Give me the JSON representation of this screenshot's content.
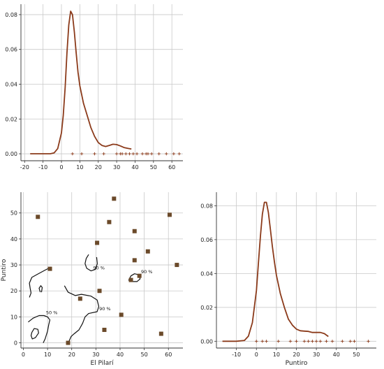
{
  "chart_data": [
    {
      "panel": "top-left",
      "type": "line",
      "title": "",
      "xlabel": "",
      "ylabel": "",
      "xlim": [
        -22,
        66
      ],
      "ylim": [
        -0.004,
        0.086
      ],
      "xticks": [
        -20,
        -10,
        0,
        10,
        20,
        30,
        40,
        50,
        60
      ],
      "yticks": [
        0.0,
        0.02,
        0.04,
        0.06,
        0.08
      ],
      "ytick_labels": [
        "0.00",
        "0.02",
        "0.04",
        "0.06",
        "0.08"
      ],
      "grid": true,
      "line_color": "#8b3a1a",
      "series": [
        {
          "x": [
            -17,
            -10,
            -6,
            -4,
            -2,
            0,
            1,
            2,
            3,
            4,
            5,
            6,
            7,
            8,
            9,
            10,
            12,
            14,
            16,
            18,
            20,
            22,
            24,
            26,
            28,
            30,
            32,
            34,
            36,
            38
          ],
          "y": [
            0.0,
            0.0,
            0.0,
            0.0005,
            0.003,
            0.012,
            0.022,
            0.038,
            0.058,
            0.074,
            0.082,
            0.08,
            0.07,
            0.058,
            0.047,
            0.039,
            0.029,
            0.022,
            0.015,
            0.01,
            0.0065,
            0.0048,
            0.0042,
            0.0048,
            0.0055,
            0.0053,
            0.0045,
            0.0036,
            0.0031,
            0.0027
          ]
        }
      ],
      "rug": [
        6,
        11,
        18,
        23,
        30,
        32,
        33,
        35,
        37,
        39,
        41,
        44,
        46,
        47,
        49,
        53,
        57,
        61,
        64
      ]
    },
    {
      "panel": "bottom-left",
      "type": "scatter",
      "title": "",
      "xlabel": "El Pilarí",
      "ylabel": "Puntiro",
      "xlim": [
        -1,
        66
      ],
      "ylim": [
        -2,
        58
      ],
      "xticks": [
        0,
        10,
        20,
        30,
        40,
        50,
        60
      ],
      "yticks": [
        0,
        10,
        20,
        30,
        40,
        50
      ],
      "grid": true,
      "marker_color": "#6b4a2a",
      "points": [
        {
          "x": 6,
          "y": 48.5
        },
        {
          "x": 11,
          "y": 28.5
        },
        {
          "x": 18.5,
          "y": 0
        },
        {
          "x": 23.5,
          "y": 17
        },
        {
          "x": 30.5,
          "y": 38.5
        },
        {
          "x": 31.5,
          "y": 20
        },
        {
          "x": 33.5,
          "y": 5
        },
        {
          "x": 35.5,
          "y": 46.5
        },
        {
          "x": 37.5,
          "y": 55.5
        },
        {
          "x": 40.5,
          "y": 10.8
        },
        {
          "x": 44.5,
          "y": 24.2
        },
        {
          "x": 46,
          "y": 43
        },
        {
          "x": 46,
          "y": 31.8
        },
        {
          "x": 48,
          "y": 25.8
        },
        {
          "x": 51.5,
          "y": 35.2
        },
        {
          "x": 57,
          "y": 3.5
        },
        {
          "x": 60.5,
          "y": 49.3
        },
        {
          "x": 63.5,
          "y": 30
        }
      ],
      "contours": [
        {
          "label": "90 %",
          "path": [
            [
              27,
              34
            ],
            [
              26,
              32.5
            ],
            [
              25.5,
              30.5
            ],
            [
              26.2,
              28.7
            ],
            [
              28,
              27.7
            ],
            [
              29.8,
              28.3
            ],
            [
              30.6,
              30.5
            ],
            [
              30.3,
              33
            ]
          ]
        },
        {
          "label": "90 %",
          "path": [
            [
              43.5,
              24
            ],
            [
              44.5,
              25.8
            ],
            [
              46,
              26.6
            ],
            [
              47.8,
              26.2
            ],
            [
              48.3,
              24.6
            ],
            [
              47,
              23.6
            ],
            [
              44.5,
              23.6
            ]
          ]
        },
        {
          "label": "90 %",
          "path": [
            [
              17,
              22
            ],
            [
              18.5,
              19.5
            ],
            [
              21.5,
              18.2
            ],
            [
              24,
              18.7
            ],
            [
              28,
              18
            ],
            [
              30.5,
              16.5
            ],
            [
              31.2,
              14
            ],
            [
              30.5,
              12
            ],
            [
              27,
              11.3
            ],
            [
              25.5,
              10
            ],
            [
              24.5,
              7.5
            ],
            [
              23,
              5
            ],
            [
              21,
              3.5
            ],
            [
              19.8,
              2.5
            ],
            [
              18.8,
              0.5
            ]
          ]
        },
        {
          "label": "",
          "path": [
            [
              11.5,
              29.2
            ],
            [
              9,
              28
            ],
            [
              6,
              26.5
            ],
            [
              3.5,
              25.2
            ],
            [
              2.5,
              23
            ],
            [
              2.8,
              21
            ],
            [
              3.2,
              19.2
            ],
            [
              2.5,
              17.5
            ]
          ]
        },
        {
          "label": "",
          "path": [
            [
              7,
              19.5
            ],
            [
              6.5,
              21
            ],
            [
              7.2,
              22
            ],
            [
              7.8,
              21.3
            ],
            [
              7.5,
              19.5
            ]
          ]
        },
        {
          "label": "50 %",
          "path": [
            [
              2,
              8
            ],
            [
              4,
              9.5
            ],
            [
              6.5,
              10.5
            ],
            [
              8.5,
              10.5
            ],
            [
              10,
              10
            ],
            [
              10.8,
              9
            ]
          ]
        },
        {
          "label": "",
          "path": [
            [
              3.5,
              4
            ],
            [
              4.5,
              5.5
            ],
            [
              6,
              5.2
            ],
            [
              6.3,
              3.8
            ],
            [
              5,
              2
            ],
            [
              3.7,
              1.5
            ],
            [
              3.2,
              2.8
            ],
            [
              3.5,
              4
            ]
          ]
        },
        {
          "label": "",
          "path": [
            [
              11,
              9
            ],
            [
              10.5,
              7
            ],
            [
              10,
              4.5
            ],
            [
              9,
              1.5
            ],
            [
              8.2,
              0
            ]
          ]
        }
      ]
    },
    {
      "panel": "bottom-right",
      "type": "line",
      "title": "",
      "xlabel": "Puntiro",
      "ylabel": "",
      "xlim": [
        -20,
        60
      ],
      "ylim": [
        -0.004,
        0.088
      ],
      "xticks": [
        -10,
        0,
        10,
        20,
        30,
        40,
        50
      ],
      "yticks": [
        0.0,
        0.02,
        0.04,
        0.06,
        0.08
      ],
      "ytick_labels": [
        "0.00",
        "0.02",
        "0.04",
        "0.06",
        "0.08"
      ],
      "grid": true,
      "line_color": "#8b3a1a",
      "series": [
        {
          "x": [
            -17,
            -10,
            -6,
            -4,
            -2,
            0,
            1,
            2,
            3,
            4,
            5,
            6,
            7,
            8,
            9,
            10,
            12,
            14,
            16,
            18,
            20,
            22,
            24,
            26,
            28,
            30,
            32,
            34,
            36
          ],
          "y": [
            0.0,
            0.0,
            0.0005,
            0.003,
            0.011,
            0.03,
            0.046,
            0.062,
            0.075,
            0.082,
            0.082,
            0.076,
            0.066,
            0.056,
            0.047,
            0.039,
            0.028,
            0.02,
            0.013,
            0.0095,
            0.0072,
            0.0062,
            0.006,
            0.0058,
            0.0052,
            0.0052,
            0.0052,
            0.0045,
            0.0028
          ]
        }
      ],
      "rug": [
        0,
        3,
        5,
        11,
        17,
        20,
        24,
        26,
        28,
        30,
        32,
        35,
        38,
        43,
        47,
        49,
        56
      ]
    }
  ]
}
